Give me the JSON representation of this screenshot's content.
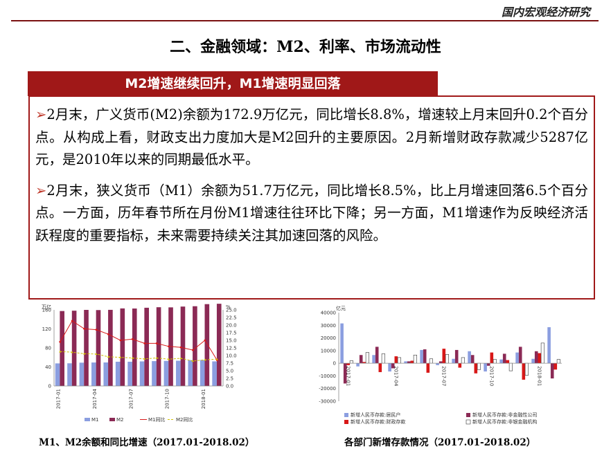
{
  "header": {
    "title": "国内宏观经济研究"
  },
  "section_title": "二、金融领域：M2、利率、市场流动性",
  "banner": "M2增速继续回升，M1增速明显回落",
  "paragraphs": [
    {
      "marker": "➢",
      "text": "2月末，广义货币(M2)余额为172.9万亿元，同比增长8.8%，增速较上月末回升0.2个百分点。从构成上看，财政支出力度加大是M2回升的主要原因。2月新增财政存款减少5287亿元，是2010年以来的同期最低水平。"
    },
    {
      "marker": "➢",
      "text": "2月末，狭义货币（M1）余额为51.7万亿元，同比增长8.5%，比上月增速回落6.5个百分点。一方面，历年春节所在月份M1增速往往环比下降；另一方面，M1增速作为反映经济活跃程度的重要指标，未来需要持续关注其加速回落的风险。"
    }
  ],
  "captions": {
    "left": "M1、M2余额和同比增速（2017.01-2018.02）",
    "right": "各部门新增存款情况（2017.01-2018.02）"
  },
  "chart_data": [
    {
      "type": "bar",
      "title": "",
      "left_unit": "万亿",
      "right_unit": "%",
      "x_tick_labels": [
        "2017-01",
        "2017-04",
        "2017-07",
        "2017-10",
        "2018-01"
      ],
      "categories": [
        "2017-01",
        "2017-02",
        "2017-03",
        "2017-04",
        "2017-05",
        "2017-06",
        "2017-07",
        "2017-08",
        "2017-09",
        "2017-10",
        "2017-11",
        "2017-12",
        "2018-01",
        "2018-02"
      ],
      "ylim_left": [
        0,
        160
      ],
      "ylim_right": [
        0,
        25
      ],
      "left_ticks": [
        "0",
        "40",
        "80",
        "120",
        "160"
      ],
      "right_ticks": [
        "0.0",
        "2.5",
        "5.0",
        "7.5",
        "10.0",
        "12.5",
        "15.0",
        "17.5",
        "20.0",
        "22.5",
        "25.0"
      ],
      "legend": [
        "M1",
        "M2",
        "M1同比",
        "M2同比"
      ],
      "legend_position": "bottom",
      "colors": {
        "M1": "#8b9ee0",
        "M2": "#8b2a55",
        "M1同比": "#d81818",
        "M2同比": "#d2c000"
      },
      "series": [
        {
          "name": "M1",
          "kind": "bar",
          "axis": "left",
          "values": [
            47.5,
            47.7,
            49.0,
            49.4,
            49.5,
            51.0,
            51.0,
            51.7,
            52.3,
            52.7,
            53.1,
            54.4,
            54.6,
            51.7
          ]
        },
        {
          "name": "M2",
          "kind": "bar",
          "axis": "left",
          "values": [
            157.6,
            158.3,
            160.0,
            159.6,
            160.1,
            163.1,
            162.9,
            164.5,
            165.6,
            165.3,
            167.0,
            167.7,
            172.1,
            172.9
          ]
        },
        {
          "name": "M1同比",
          "kind": "line",
          "axis": "right",
          "values": [
            14.5,
            21.4,
            18.8,
            18.5,
            17.0,
            15.0,
            15.4,
            14.0,
            14.0,
            13.0,
            12.7,
            11.8,
            15.0,
            8.5
          ]
        },
        {
          "name": "M2同比",
          "kind": "line",
          "axis": "right",
          "values": [
            11.3,
            11.1,
            10.6,
            10.5,
            9.6,
            9.4,
            9.2,
            8.9,
            9.2,
            8.8,
            9.1,
            8.2,
            8.6,
            8.8
          ]
        }
      ]
    },
    {
      "type": "bar",
      "title": "",
      "y_unit": "亿元",
      "x_tick_labels": [
        "2017-01",
        "2017-04",
        "2017-07",
        "2017-10",
        "2018-01"
      ],
      "categories": [
        "2017-01",
        "2017-02",
        "2017-03",
        "2017-04",
        "2017-05",
        "2017-06",
        "2017-07",
        "2017-08",
        "2017-09",
        "2017-10",
        "2017-11",
        "2017-12",
        "2018-01",
        "2018-02"
      ],
      "ylim": [
        -30000,
        40000
      ],
      "y_ticks": [
        "-30000",
        "-20000",
        "-10000",
        "0",
        "10000",
        "20000",
        "30000",
        "40000"
      ],
      "legend": [
        "新增人民币存款:居民户",
        "新增人民币存款:非金融性公司",
        "新增人民币存款:财政存款",
        "新增人民币存款:非银金融机构"
      ],
      "legend_position": "bottom",
      "colors": {
        "居民户": "#8b9ee0",
        "非金融性公司": "#8b2a55",
        "财政存款": "#d81818",
        "非银金融机构": "#ffffff"
      },
      "series": [
        {
          "name": "新增人民币存款:居民户",
          "values": [
            31500,
            -2500,
            6500,
            -6500,
            1500,
            10500,
            -1500,
            3500,
            9500,
            -6500,
            3000,
            8500,
            3500,
            28500
          ]
        },
        {
          "name": "新增人民币存款:非金融性公司",
          "values": [
            -16000,
            6500,
            13000,
            -4000,
            1500,
            11000,
            1500,
            10500,
            6500,
            -2000,
            7500,
            13000,
            9500,
            -12000
          ]
        },
        {
          "name": "新增人民币存款:财政存款",
          "values": [
            -1500,
            1000,
            -7000,
            5500,
            2000,
            -7500,
            11500,
            -3500,
            -8000,
            8500,
            2500,
            -13000,
            8000,
            -5000
          ]
        },
        {
          "name": "新增人民币存款:非银金融机构",
          "values": [
            2000,
            8500,
            7500,
            4500,
            6500,
            3500,
            7000,
            4500,
            -5000,
            3000,
            -6000,
            -9500,
            16000,
            3000
          ]
        }
      ]
    }
  ]
}
